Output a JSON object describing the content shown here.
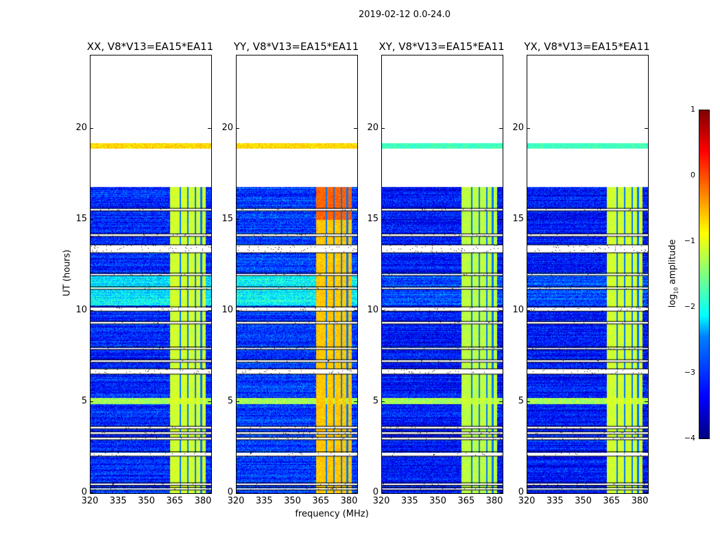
{
  "suptitle": "2019-02-12 0.0-24.0",
  "chart_data": {
    "type": "heatmap",
    "title": "2019-02-12 0.0-24.0",
    "xlabel": "frequency (MHz)",
    "ylabel": "UT (hours)",
    "xlim": [
      320,
      384
    ],
    "ylim": [
      0,
      24
    ],
    "xticks": [
      "320",
      "335",
      "350",
      "365",
      "380"
    ],
    "yticks": [
      "0",
      "5",
      "10",
      "15",
      "20"
    ],
    "panels": [
      {
        "title": "XX, V8*V13=EA15*EA11",
        "background_level": -3.2,
        "band_level": -1.1,
        "sky_level": -2.2
      },
      {
        "title": "YY, V8*V13=EA15*EA11",
        "background_level": -3.1,
        "band_level": -0.6,
        "sky_level": -2.1
      },
      {
        "title": "XY, V8*V13=EA15*EA11",
        "background_level": -3.3,
        "band_level": -1.2,
        "sky_level": -3.0
      },
      {
        "title": "YX, V8*V13=EA15*EA11",
        "background_level": -3.3,
        "band_level": -1.1,
        "sky_level": -3.0
      }
    ],
    "data_time_ranges": [
      [
        0,
        16.8
      ],
      [
        18.9,
        19.2
      ]
    ],
    "flagged_time_ranges": [
      [
        0.2,
        0.3
      ],
      [
        0.45,
        0.55
      ],
      [
        2.05,
        2.25
      ],
      [
        2.95,
        3.05
      ],
      [
        3.25,
        3.35
      ],
      [
        3.55,
        3.65
      ],
      [
        6.55,
        6.8
      ],
      [
        7.2,
        7.3
      ],
      [
        7.9,
        8.0
      ],
      [
        9.3,
        9.4
      ],
      [
        10.0,
        10.2
      ],
      [
        11.2,
        11.3
      ],
      [
        11.95,
        12.05
      ],
      [
        13.2,
        13.6
      ],
      [
        14.1,
        14.2
      ],
      [
        15.5,
        15.6
      ]
    ],
    "rfi_band_MHz": [
      362,
      381
    ],
    "rfi_notches_MHz": [
      367.5,
      371.5,
      375.5,
      378.5
    ],
    "rfi_time_ranges": [
      [
        4.9,
        5.25
      ]
    ],
    "colorbar": {
      "label": "log10 amplitude",
      "range": [
        -4,
        1
      ],
      "ticks": [
        "1",
        "0",
        "−1",
        "−2",
        "−3",
        "−4"
      ],
      "colormap": "jet"
    }
  }
}
